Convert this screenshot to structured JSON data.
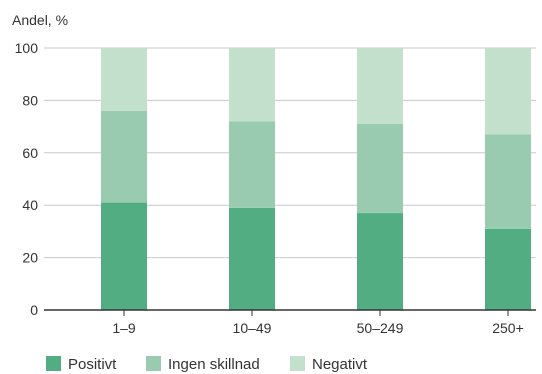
{
  "chart_data": {
    "type": "bar",
    "stacked": true,
    "ylabel": "Andel, %",
    "xlabel": "",
    "ylim": [
      0,
      100
    ],
    "yticks": [
      0,
      20,
      40,
      60,
      80,
      100
    ],
    "grid": true,
    "categories": [
      "1–9",
      "10–49",
      "50–249",
      "250+"
    ],
    "series": [
      {
        "name": "Positivt",
        "color": "#52ae82",
        "values": [
          41,
          39,
          37,
          31
        ]
      },
      {
        "name": "Ingen skillnad",
        "color": "#99cbb1",
        "values": [
          35,
          33,
          34,
          36
        ]
      },
      {
        "name": "Negativt",
        "color": "#c3e0cc",
        "values": [
          24,
          28,
          29,
          33
        ]
      }
    ],
    "legend_position": "bottom-left"
  },
  "colors": {
    "grid": "#c8c8c8",
    "axis": "#333333"
  }
}
